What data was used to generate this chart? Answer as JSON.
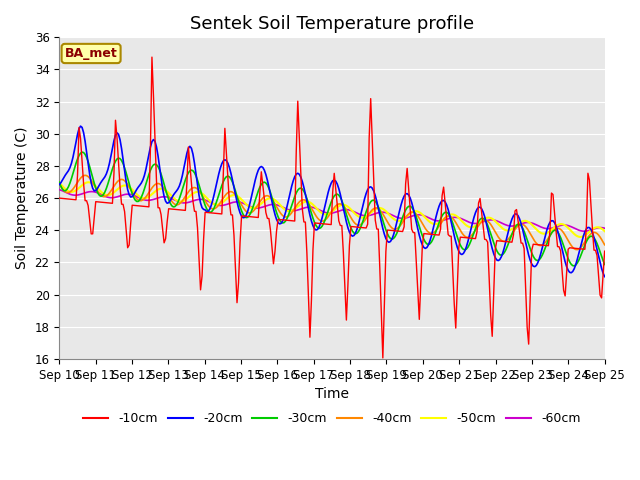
{
  "title": "Sentek Soil Temperature profile",
  "xlabel": "Time",
  "ylabel": "Soil Temperature (C)",
  "ylim": [
    16,
    36
  ],
  "yticks": [
    16,
    18,
    20,
    22,
    24,
    26,
    28,
    30,
    32,
    34,
    36
  ],
  "x_labels": [
    "Sep 10",
    "Sep 11",
    "Sep 12",
    "Sep 13",
    "Sep 14",
    "Sep 15",
    "Sep 16",
    "Sep 17",
    "Sep 18",
    "Sep 19",
    "Sep 20",
    "Sep 21",
    "Sep 22",
    "Sep 23",
    "Sep 24",
    "Sep 25"
  ],
  "line_colors": {
    "-10cm": "#ff0000",
    "-20cm": "#0000ff",
    "-30cm": "#00cc00",
    "-40cm": "#ff8800",
    "-50cm": "#ffff00",
    "-60cm": "#cc00cc"
  },
  "legend_label": "BA_met",
  "legend_box_facecolor": "#ffffaa",
  "legend_box_edgecolor": "#aa8800",
  "background_color": "#e8e8e8",
  "grid_color": "#ffffff",
  "title_fontsize": 13,
  "axis_label_fontsize": 10,
  "tick_fontsize": 8.5,
  "figsize": [
    6.4,
    4.8
  ],
  "dpi": 100
}
